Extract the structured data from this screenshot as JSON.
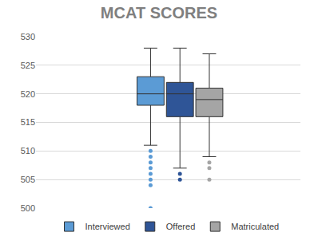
{
  "chart_data": {
    "type": "box",
    "title": "MCAT SCORES",
    "ylim": [
      500,
      530
    ],
    "yticks": [
      500,
      505,
      510,
      515,
      520,
      525,
      530
    ],
    "grid": true,
    "legend": "bottom",
    "tick_labels": "y",
    "series": [
      {
        "name": "Interviewed",
        "color": "#5b9bd5",
        "whisker_low": 511,
        "q1": 518,
        "median": 520,
        "q3": 523,
        "whisker_high": 528,
        "outliers": [
          510,
          509,
          508,
          507,
          506,
          505,
          504,
          500
        ]
      },
      {
        "name": "Offered",
        "color": "#2f5597",
        "whisker_low": 507,
        "q1": 516,
        "median": 520,
        "q3": 522,
        "whisker_high": 528,
        "outliers": [
          506,
          505
        ]
      },
      {
        "name": "Matriculated",
        "color": "#a5a5a5",
        "whisker_low": 509,
        "q1": 516,
        "median": 519,
        "q3": 521,
        "whisker_high": 527,
        "outliers": [
          508,
          507,
          505
        ]
      }
    ]
  }
}
